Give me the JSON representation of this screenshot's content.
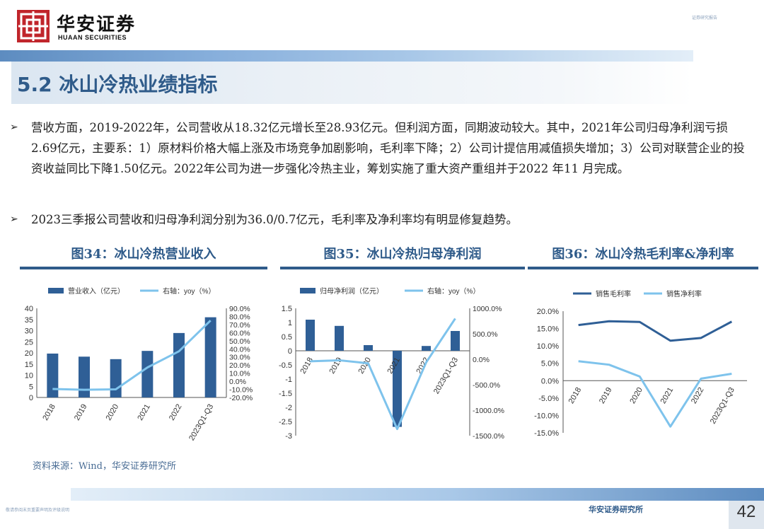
{
  "header": {
    "logo_cn": "华安证券",
    "logo_en": "HUAAN SECURITIES",
    "top_right_tag": "证券研究报告"
  },
  "section": {
    "title": "5.2 冰山冷热业绩指标"
  },
  "bullets": [
    "营收方面，2019-2022年，公司营收从18.32亿元增长至28.93亿元。但利润方面，同期波动较大。其中，2021年公司归母净利润亏损2.69亿元，主要系：1）原材料价格大幅上涨及市场竞争加剧影响，毛利率下降；2）公司计提信用减值损失增加；3）公司对联营企业的投资收益同比下降1.50亿元。2022年公司为进一步强化冷热主业，筹划实施了重大资产重组并于2022 年11 月完成。",
    "2023三季报公司营收和归母净利润分别为36.0/0.7亿元，毛利率及净利率均有明显修复趋势。"
  ],
  "figures": {
    "fig1_title": "图34：冰山冷热营业收入",
    "fig2_title": "图35：冰山冷热归母净利润",
    "fig3_title": "图36：冰山冷热毛利率&净利率"
  },
  "chart_data": [
    {
      "type": "bar",
      "title": "图34：冰山冷热营业收入",
      "categories": [
        "2018",
        "2019",
        "2020",
        "2021",
        "2022",
        "2023Q1-Q3"
      ],
      "series": [
        {
          "name": "营业收入（亿元）",
          "type": "bar",
          "axis": "left",
          "values": [
            19.7,
            18.32,
            17.2,
            20.9,
            28.93,
            36.0
          ]
        },
        {
          "name": "右轴：yoy（%）",
          "type": "line",
          "axis": "right",
          "values": [
            -9.5,
            -10.5,
            -10.0,
            17.0,
            37.0,
            75.0
          ]
        }
      ],
      "ylim": [
        0,
        40
      ],
      "y_ticks": [
        0,
        5,
        10,
        15,
        20,
        25,
        30,
        35,
        40
      ],
      "y2lim": [
        -20,
        90
      ],
      "y2_ticks": [
        "-20.0%",
        "-10.0%",
        "0.0%",
        "10.0%",
        "20.0%",
        "30.0%",
        "40.0%",
        "50.0%",
        "60.0%",
        "70.0%",
        "80.0%",
        "90.0%"
      ],
      "legend": "top",
      "colors": {
        "bar": "#2f5f96",
        "line": "#7ec3ec"
      }
    },
    {
      "type": "bar",
      "title": "图35：冰山冷热归母净利润",
      "categories": [
        "2018",
        "2019",
        "2020",
        "2021",
        "2022",
        "2023Q1-Q3"
      ],
      "series": [
        {
          "name": "归母净利润（亿元）",
          "type": "bar",
          "axis": "left",
          "values": [
            1.1,
            0.88,
            0.2,
            -2.69,
            0.17,
            0.7
          ]
        },
        {
          "name": "右轴：yoy（%）",
          "type": "line",
          "axis": "right",
          "values": [
            -40,
            -20,
            -80,
            -1370,
            -60,
            800
          ]
        }
      ],
      "ylim": [
        -3,
        1.5
      ],
      "y_ticks": [
        "-3",
        "-2.5",
        "-2",
        "-1.5",
        "-1",
        "-0.5",
        "0",
        "0.5",
        "1",
        "1.5"
      ],
      "y2lim": [
        -1500,
        1000
      ],
      "y2_ticks": [
        "-1500.0%",
        "-1000.0%",
        "-500.0%",
        "0.0%",
        "500.0%",
        "1000.0%"
      ],
      "legend": "top",
      "colors": {
        "bar": "#2f5f96",
        "line": "#7ec3ec"
      }
    },
    {
      "type": "line",
      "title": "图36：冰山冷热毛利率&净利率",
      "categories": [
        "2018",
        "2019",
        "2020",
        "2021",
        "2022",
        "2023Q1-Q3"
      ],
      "series": [
        {
          "name": "销售毛利率",
          "values": [
            16.0,
            17.1,
            16.9,
            11.5,
            12.3,
            17.0
          ]
        },
        {
          "name": "销售净利率",
          "values": [
            5.6,
            4.6,
            1.2,
            -13.2,
            0.6,
            2.0
          ]
        }
      ],
      "ylim": [
        -15,
        20
      ],
      "y_ticks": [
        "-15.0%",
        "-10.0%",
        "-5.0%",
        "0.0%",
        "5.0%",
        "10.0%",
        "15.0%",
        "20.0%"
      ],
      "legend": "top",
      "colors": {
        "gross": "#2f5f96",
        "net": "#7ec3ec"
      }
    }
  ],
  "source": "资料来源：Wind，华安证券研究所",
  "footer": {
    "left": "敬请参阅末页重要声明及评级说明",
    "center": "华安证券研究所",
    "page": "42"
  }
}
